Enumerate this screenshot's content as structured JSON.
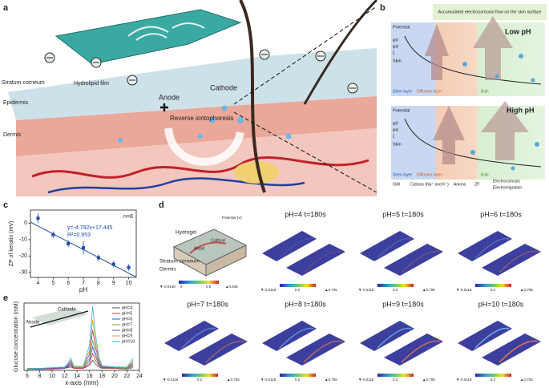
{
  "chart_data": [
    {
      "type": "scatter",
      "panel_label": "c",
      "x": [
        4,
        5,
        6,
        7,
        8,
        9,
        10
      ],
      "values": [
        3,
        -7,
        -12.5,
        -15,
        -21,
        -25,
        -27
      ],
      "errors": [
        3,
        2,
        2,
        4,
        2,
        2,
        2
      ],
      "color": "#1f4fa8",
      "fit": {
        "slope": -4.792,
        "intercept": 17.445
      },
      "annotations": [
        "n=8",
        "y=-4.792x+17.445",
        "R²=0.953"
      ],
      "xlabel": "pH",
      "ylabel": "ZP of keratin (mV)",
      "xlim": [
        3.5,
        10.5
      ],
      "xticks": [
        4,
        5,
        6,
        7,
        8,
        9,
        10
      ],
      "ylim": [
        -33,
        8
      ],
      "yticks": [
        0,
        -10,
        -20,
        -30
      ]
    },
    {
      "type": "line",
      "panel_label": "e",
      "xlabel": "x-axis (mm)",
      "ylabel": "Glucose concentration (mM)",
      "inset_labels": [
        "Anode",
        "Cathode"
      ],
      "x": [
        6,
        8,
        10,
        12,
        12.5,
        13,
        13.5,
        15,
        16,
        16.5,
        17,
        17.5,
        18,
        20,
        22,
        23
      ],
      "series": [
        {
          "name": "pH=4",
          "color": "#555555",
          "values": [
            0.02,
            0.02,
            0.02,
            0.03,
            0.04,
            0.05,
            0.03,
            0.03,
            0.07,
            0.15,
            0.09,
            0.05,
            0.03,
            0.03,
            0.02,
            0.04
          ]
        },
        {
          "name": "pH=5",
          "color": "#e03030",
          "values": [
            0.02,
            0.02,
            0.02,
            0.03,
            0.05,
            0.07,
            0.03,
            0.03,
            0.1,
            0.25,
            0.14,
            0.07,
            0.04,
            0.03,
            0.03,
            0.06
          ]
        },
        {
          "name": "pH=6",
          "color": "#3050e0",
          "values": [
            0.02,
            0.02,
            0.03,
            0.03,
            0.06,
            0.09,
            0.04,
            0.04,
            0.14,
            0.35,
            0.2,
            0.09,
            0.04,
            0.04,
            0.03,
            0.08
          ]
        },
        {
          "name": "pH=7",
          "color": "#7aa020",
          "values": [
            0.02,
            0.03,
            0.03,
            0.04,
            0.07,
            0.11,
            0.04,
            0.04,
            0.18,
            0.45,
            0.25,
            0.11,
            0.05,
            0.04,
            0.03,
            0.1
          ]
        },
        {
          "name": "pH=8",
          "color": "#9040c0",
          "values": [
            0.03,
            0.03,
            0.03,
            0.04,
            0.08,
            0.13,
            0.05,
            0.05,
            0.24,
            0.6,
            0.33,
            0.14,
            0.05,
            0.04,
            0.04,
            0.12
          ]
        },
        {
          "name": "pH=9",
          "color": "#e0a020",
          "values": [
            0.03,
            0.03,
            0.04,
            0.05,
            0.09,
            0.15,
            0.05,
            0.05,
            0.3,
            0.75,
            0.4,
            0.17,
            0.06,
            0.05,
            0.04,
            0.15
          ]
        },
        {
          "name": "pH=10",
          "color": "#20c0d0",
          "values": [
            0.03,
            0.03,
            0.04,
            0.05,
            0.1,
            0.18,
            0.06,
            0.06,
            0.38,
            0.95,
            0.5,
            0.2,
            0.07,
            0.05,
            0.05,
            0.18
          ]
        }
      ],
      "xlim": [
        5.5,
        24
      ],
      "xticks": [
        6,
        8,
        10,
        12,
        14,
        16,
        18,
        20,
        22,
        24
      ],
      "ylim": [
        0,
        1
      ]
    }
  ],
  "panel_a": {
    "label": "a",
    "stratum_corneum": "Stratum corneum",
    "hydrolipid_film": "Hydrolipid film",
    "epidermis": "Epidermis",
    "dermis": "Dermis",
    "anode": "Anode",
    "cathode": "Cathode",
    "reverse_iontophoresis": "Reverse iontophoresis"
  },
  "panel_b": {
    "label": "b",
    "banner": "Accumulated electroosmosis flow on the skin surface",
    "low_ph": "Low pH",
    "high_ph": "High pH",
    "potential": "Potential",
    "skin": "Skin",
    "phi0": "φ0",
    "phid": "φd",
    "zeta": "ζ",
    "stern_layer": "Stern layer",
    "diffusive_layer": "Diffusive layer",
    "bulk": "Bulk",
    "legend": [
      "ISM",
      "Cations (Na⁺ and K⁺)",
      "Anions",
      "ZP"
    ],
    "electroosmosis": "Electroosmosis",
    "electromigration": "Electromigration"
  },
  "panel_d": {
    "label": "d",
    "schematic": {
      "hydrogel": "Hydrogel",
      "potential": "Potential (V)",
      "anod": "Anod",
      "cathod": "Cathod",
      "stratum_corneum": "Stratum corneum",
      "dermis": "Dermis",
      "min": "▼-0.0148",
      "zero": "0",
      "mid": "0.5",
      "max": "▲0.845"
    },
    "tiles": [
      {
        "title": "pH=4 t=180s",
        "min": "▼-0.0118",
        "mid": "0.2",
        "max": "▲0.705"
      },
      {
        "title": "pH=5 t=180s",
        "min": "▼-0.0118",
        "mid": "0.2",
        "max": "▲0.705"
      },
      {
        "title": "pH=6 t=180s",
        "min": "▼-0.0118",
        "mid": "0.2",
        "max": "▲0.705"
      },
      {
        "title": "pH=7 t=180s",
        "min": "▼-0.0118",
        "mid": "0.2",
        "max": "▲0.705"
      },
      {
        "title": "pH=8 t=180s",
        "min": "▼-0.0118",
        "mid": "0.2",
        "max": "▲0.705"
      },
      {
        "title": "pH=9 t=180s",
        "min": "▼-0.0118",
        "mid": "0.2",
        "max": "▲0.705"
      },
      {
        "title": "pH=10 t=180s",
        "min": "▼-0.0118",
        "mid": "0.2",
        "max": "▲0.705"
      }
    ]
  }
}
